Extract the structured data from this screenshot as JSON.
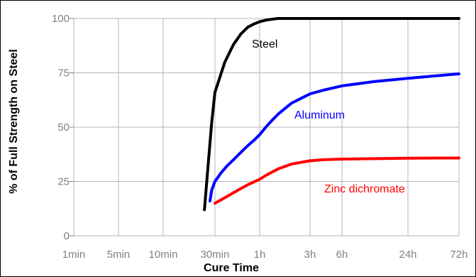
{
  "chart_data": {
    "type": "line",
    "title": "",
    "xlabel": "Cure Time",
    "ylabel": "% of Full Strength on Steel",
    "x_ticks": [
      "1min",
      "5min",
      "10min",
      "30min",
      "1h",
      "3h",
      "6h",
      "24h",
      "72h"
    ],
    "y_ticks": [
      "0",
      "25",
      "50",
      "75",
      "100"
    ],
    "ylim": [
      0,
      100
    ],
    "grid": true,
    "legend": "inline labels",
    "series": [
      {
        "name": "Steel",
        "color": "#000000",
        "x": [
          24,
          26,
          28,
          30,
          35,
          40,
          45,
          50,
          55,
          60,
          70,
          80,
          90,
          120,
          180,
          360,
          1440,
          4320
        ],
        "y": [
          12,
          33,
          52,
          66,
          80,
          88,
          93,
          96,
          97.5,
          98.5,
          99.3,
          99.7,
          100,
          100,
          100,
          100,
          100,
          100
        ]
      },
      {
        "name": "Aluminum",
        "color": "#0000ff",
        "x": [
          27,
          28,
          30,
          33,
          36,
          40,
          45,
          50,
          55,
          60,
          70,
          80,
          90,
          120,
          180,
          240,
          360,
          720,
          1440,
          2880,
          4320
        ],
        "y": [
          16,
          21,
          25,
          29,
          32,
          35,
          38.5,
          41.5,
          44,
          46.5,
          50.5,
          53.5,
          56,
          61,
          65.3,
          67,
          69,
          71,
          72.5,
          73.8,
          74.5
        ]
      },
      {
        "name": "Zinc dichromate",
        "color": "#ff0000",
        "x": [
          30,
          35,
          40,
          45,
          50,
          60,
          70,
          80,
          90,
          120,
          180,
          240,
          360,
          720,
          1440,
          2880,
          4320
        ],
        "y": [
          15,
          17.5,
          19.8,
          21.8,
          23.5,
          26,
          28,
          29.5,
          30.8,
          33,
          34.5,
          35,
          35.3,
          35.5,
          35.7,
          35.8,
          35.8
        ]
      }
    ]
  }
}
